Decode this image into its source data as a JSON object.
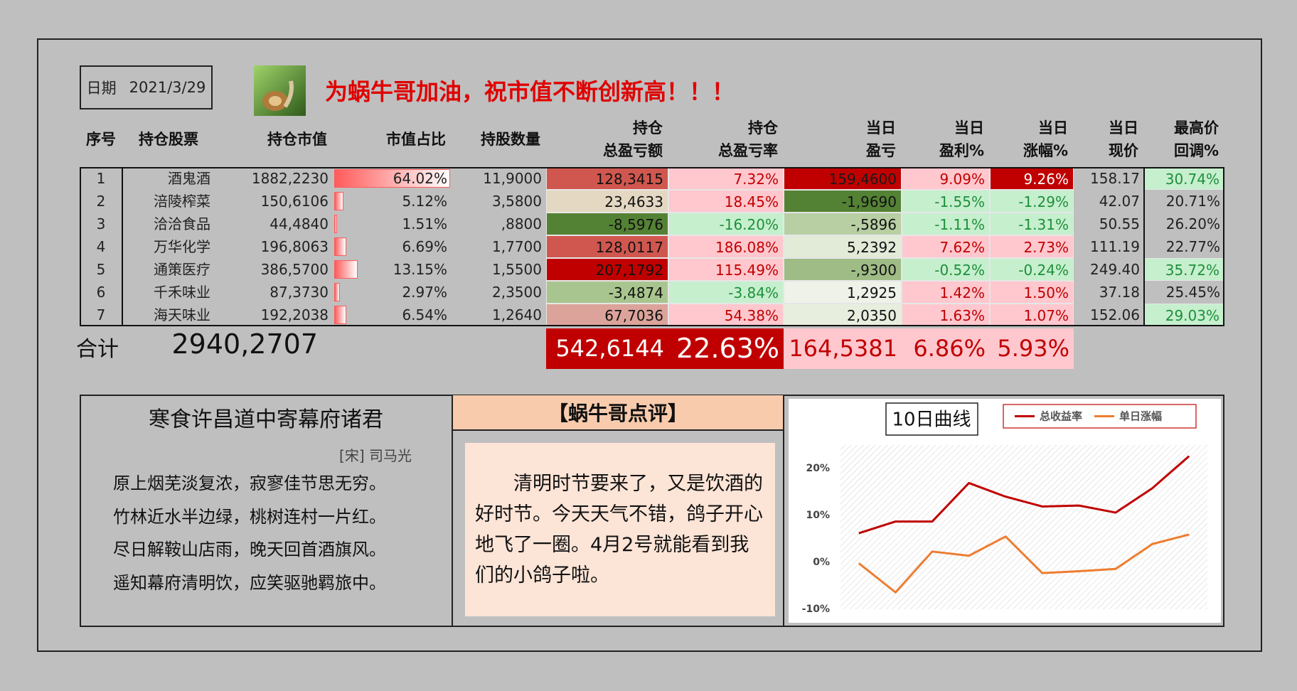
{
  "header": {
    "date_label": "日期",
    "date": "2021/3/29",
    "slogan": "为蜗牛哥加油，祝市值不断创新高！！！"
  },
  "table": {
    "columns": [
      [
        "序号"
      ],
      [
        "持仓股票"
      ],
      [
        "持仓市值"
      ],
      [
        "市值占比"
      ],
      [
        "持股数量"
      ],
      [
        "持仓",
        "总盈亏额"
      ],
      [
        "持仓",
        "总盈亏率"
      ],
      [
        "当日",
        "盈亏"
      ],
      [
        "当日",
        "盈利%"
      ],
      [
        "当日",
        "涨幅%"
      ],
      [
        "当日",
        "现价"
      ],
      [
        "最高价",
        "回调%"
      ]
    ],
    "rows": [
      [
        "1",
        "酒鬼酒",
        "1882,2230",
        {
          "value": 64.02,
          "label": "64.02%"
        },
        "11,9000",
        {
          "text": "128,3415",
          "bg": "#d0574f",
          "fg": "#111111"
        },
        {
          "text": "7.32%",
          "bg": "#ffc7ce",
          "fg": "#c00000"
        },
        {
          "text": "159,4600",
          "bg": "#c00000",
          "fg": "#1a1a1a"
        },
        {
          "text": "9.09%",
          "bg": "#ffc7ce",
          "fg": "#c00000"
        },
        {
          "text": "9.26%",
          "bg": "#c00000",
          "fg": "#ffffff"
        },
        "158.17",
        {
          "text": "30.74%",
          "bg": "#c6efce",
          "fg": "#1e8f3a"
        }
      ],
      [
        "2",
        "涪陵榨菜",
        "150,6106",
        {
          "value": 5.12,
          "label": "5.12%"
        },
        "3,5800",
        {
          "text": "23,4633",
          "bg": "#e4d8c3",
          "fg": "#111111"
        },
        {
          "text": "18.45%",
          "bg": "#ffc7ce",
          "fg": "#c00000"
        },
        {
          "text": "-1,9690",
          "bg": "#548235",
          "fg": "#111111"
        },
        {
          "text": "-1.55%",
          "bg": "#c6efce",
          "fg": "#1e8f3a"
        },
        {
          "text": "-1.29%",
          "bg": "#c6efce",
          "fg": "#1e8f3a"
        },
        "42.07",
        "20.71%"
      ],
      [
        "3",
        "洽洽食品",
        "44,4840",
        {
          "value": 1.51,
          "label": "1.51%"
        },
        ",8800",
        {
          "text": "-8,5976",
          "bg": "#548235",
          "fg": "#111111"
        },
        {
          "text": "-16.20%",
          "bg": "#c6efce",
          "fg": "#1e8f3a"
        },
        {
          "text": "-,5896",
          "bg": "#b8cfa4",
          "fg": "#111111"
        },
        {
          "text": "-1.11%",
          "bg": "#c6efce",
          "fg": "#1e8f3a"
        },
        {
          "text": "-1.31%",
          "bg": "#c6efce",
          "fg": "#1e8f3a"
        },
        "50.55",
        "26.20%"
      ],
      [
        "4",
        "万华化学",
        "196,8063",
        {
          "value": 6.69,
          "label": "6.69%"
        },
        "1,7700",
        {
          "text": "128,0117",
          "bg": "#d0574f",
          "fg": "#111111"
        },
        {
          "text": "186.08%",
          "bg": "#ffc7ce",
          "fg": "#c00000"
        },
        {
          "text": "5,2392",
          "bg": "#e2ead8",
          "fg": "#111111"
        },
        {
          "text": "7.62%",
          "bg": "#ffc7ce",
          "fg": "#c00000"
        },
        {
          "text": "2.73%",
          "bg": "#ffc7ce",
          "fg": "#c00000"
        },
        "111.19",
        "22.77%"
      ],
      [
        "5",
        "通策医疗",
        "386,5700",
        {
          "value": 13.15,
          "label": "13.15%"
        },
        "1,5500",
        {
          "text": "207,1792",
          "bg": "#c00000",
          "fg": "#111111"
        },
        {
          "text": "115.49%",
          "bg": "#ffc7ce",
          "fg": "#c00000"
        },
        {
          "text": "-,9300",
          "bg": "#9fbc86",
          "fg": "#111111"
        },
        {
          "text": "-0.52%",
          "bg": "#c6efce",
          "fg": "#1e8f3a"
        },
        {
          "text": "-0.24%",
          "bg": "#c6efce",
          "fg": "#1e8f3a"
        },
        "249.40",
        {
          "text": "35.72%",
          "bg": "#c6efce",
          "fg": "#1e8f3a"
        }
      ],
      [
        "6",
        "千禾味业",
        "87,3730",
        {
          "value": 2.97,
          "label": "2.97%"
        },
        "2,3500",
        {
          "text": "-3,4874",
          "bg": "#a9c58f",
          "fg": "#111111"
        },
        {
          "text": "-3.84%",
          "bg": "#c6efce",
          "fg": "#1e8f3a"
        },
        {
          "text": "1,2925",
          "bg": "#eef2e8",
          "fg": "#111111"
        },
        {
          "text": "1.42%",
          "bg": "#ffc7ce",
          "fg": "#c00000"
        },
        {
          "text": "1.50%",
          "bg": "#ffc7ce",
          "fg": "#c00000"
        },
        "37.18",
        "25.45%"
      ],
      [
        "7",
        "海天味业",
        "192,2038",
        {
          "value": 6.54,
          "label": "6.54%"
        },
        "1,2640",
        {
          "text": "67,7036",
          "bg": "#dba39a",
          "fg": "#111111"
        },
        {
          "text": "54.38%",
          "bg": "#ffc7ce",
          "fg": "#c00000"
        },
        {
          "text": "2,0350",
          "bg": "#e8eede",
          "fg": "#111111"
        },
        {
          "text": "1.63%",
          "bg": "#ffc7ce",
          "fg": "#c00000"
        },
        {
          "text": "1.07%",
          "bg": "#ffc7ce",
          "fg": "#c00000"
        },
        "152.06",
        {
          "text": "29.03%",
          "bg": "#c6efce",
          "fg": "#1e8f3a"
        }
      ]
    ],
    "totals": {
      "label": "合计",
      "value": "2940,2707",
      "cells": [
        {
          "text": "542,6144",
          "bg": "#c00000",
          "fg": "#ffffff"
        },
        {
          "text": "22.63%",
          "bg": "#c00000",
          "fg": "#ffffff"
        },
        {
          "text": "164,5381",
          "bg": "#ffc7ce",
          "fg": "#c00000"
        },
        {
          "text": "6.86%",
          "bg": "#ffc7ce",
          "fg": "#c00000"
        },
        {
          "text": "5.93%",
          "bg": "#ffc7ce",
          "fg": "#c00000"
        }
      ]
    }
  },
  "poem": {
    "title": "寒食许昌道中寄幕府诸君",
    "author": "[宋] 司马光",
    "lines": [
      "原上烟芜淡复浓，寂寥佳节思无穷。",
      "竹林近水半边绿，桃树连村一片红。",
      "尽日解鞍山店雨，晚天回首酒旗风。",
      "遥知幕府清明饮，应笑驱驰羁旅中。"
    ]
  },
  "comment": {
    "title": "【蜗牛哥点评】",
    "text": "清明时节要来了，又是饮酒的好时节。今天天气不错，鸽子开心地飞了一圈。4月2号就能看到我们的小鸽子啦。"
  },
  "chart_data": {
    "type": "line",
    "title": "10日曲线",
    "categories": [
      null,
      null,
      null,
      null,
      null,
      null,
      null,
      null,
      null,
      null
    ],
    "series": [
      {
        "name": "总收益率",
        "color": "#c00000",
        "values": [
          6.2,
          8.7,
          8.7,
          16.9,
          14.0,
          11.9,
          12.1,
          10.6,
          15.8,
          22.63
        ]
      },
      {
        "name": "单日涨幅",
        "color": "#ed7d31",
        "values": [
          -0.2,
          -6.4,
          2.3,
          1.4,
          5.5,
          -2.3,
          -1.9,
          -1.4,
          3.9,
          5.93
        ]
      }
    ],
    "ylim": [
      -10,
      25
    ],
    "yticks": [
      {
        "value": -10,
        "label": "-10%"
      },
      {
        "value": 0,
        "label": "0%"
      },
      {
        "value": 10,
        "label": "10%"
      },
      {
        "value": 20,
        "label": "20%"
      }
    ],
    "legend": "top-right"
  }
}
